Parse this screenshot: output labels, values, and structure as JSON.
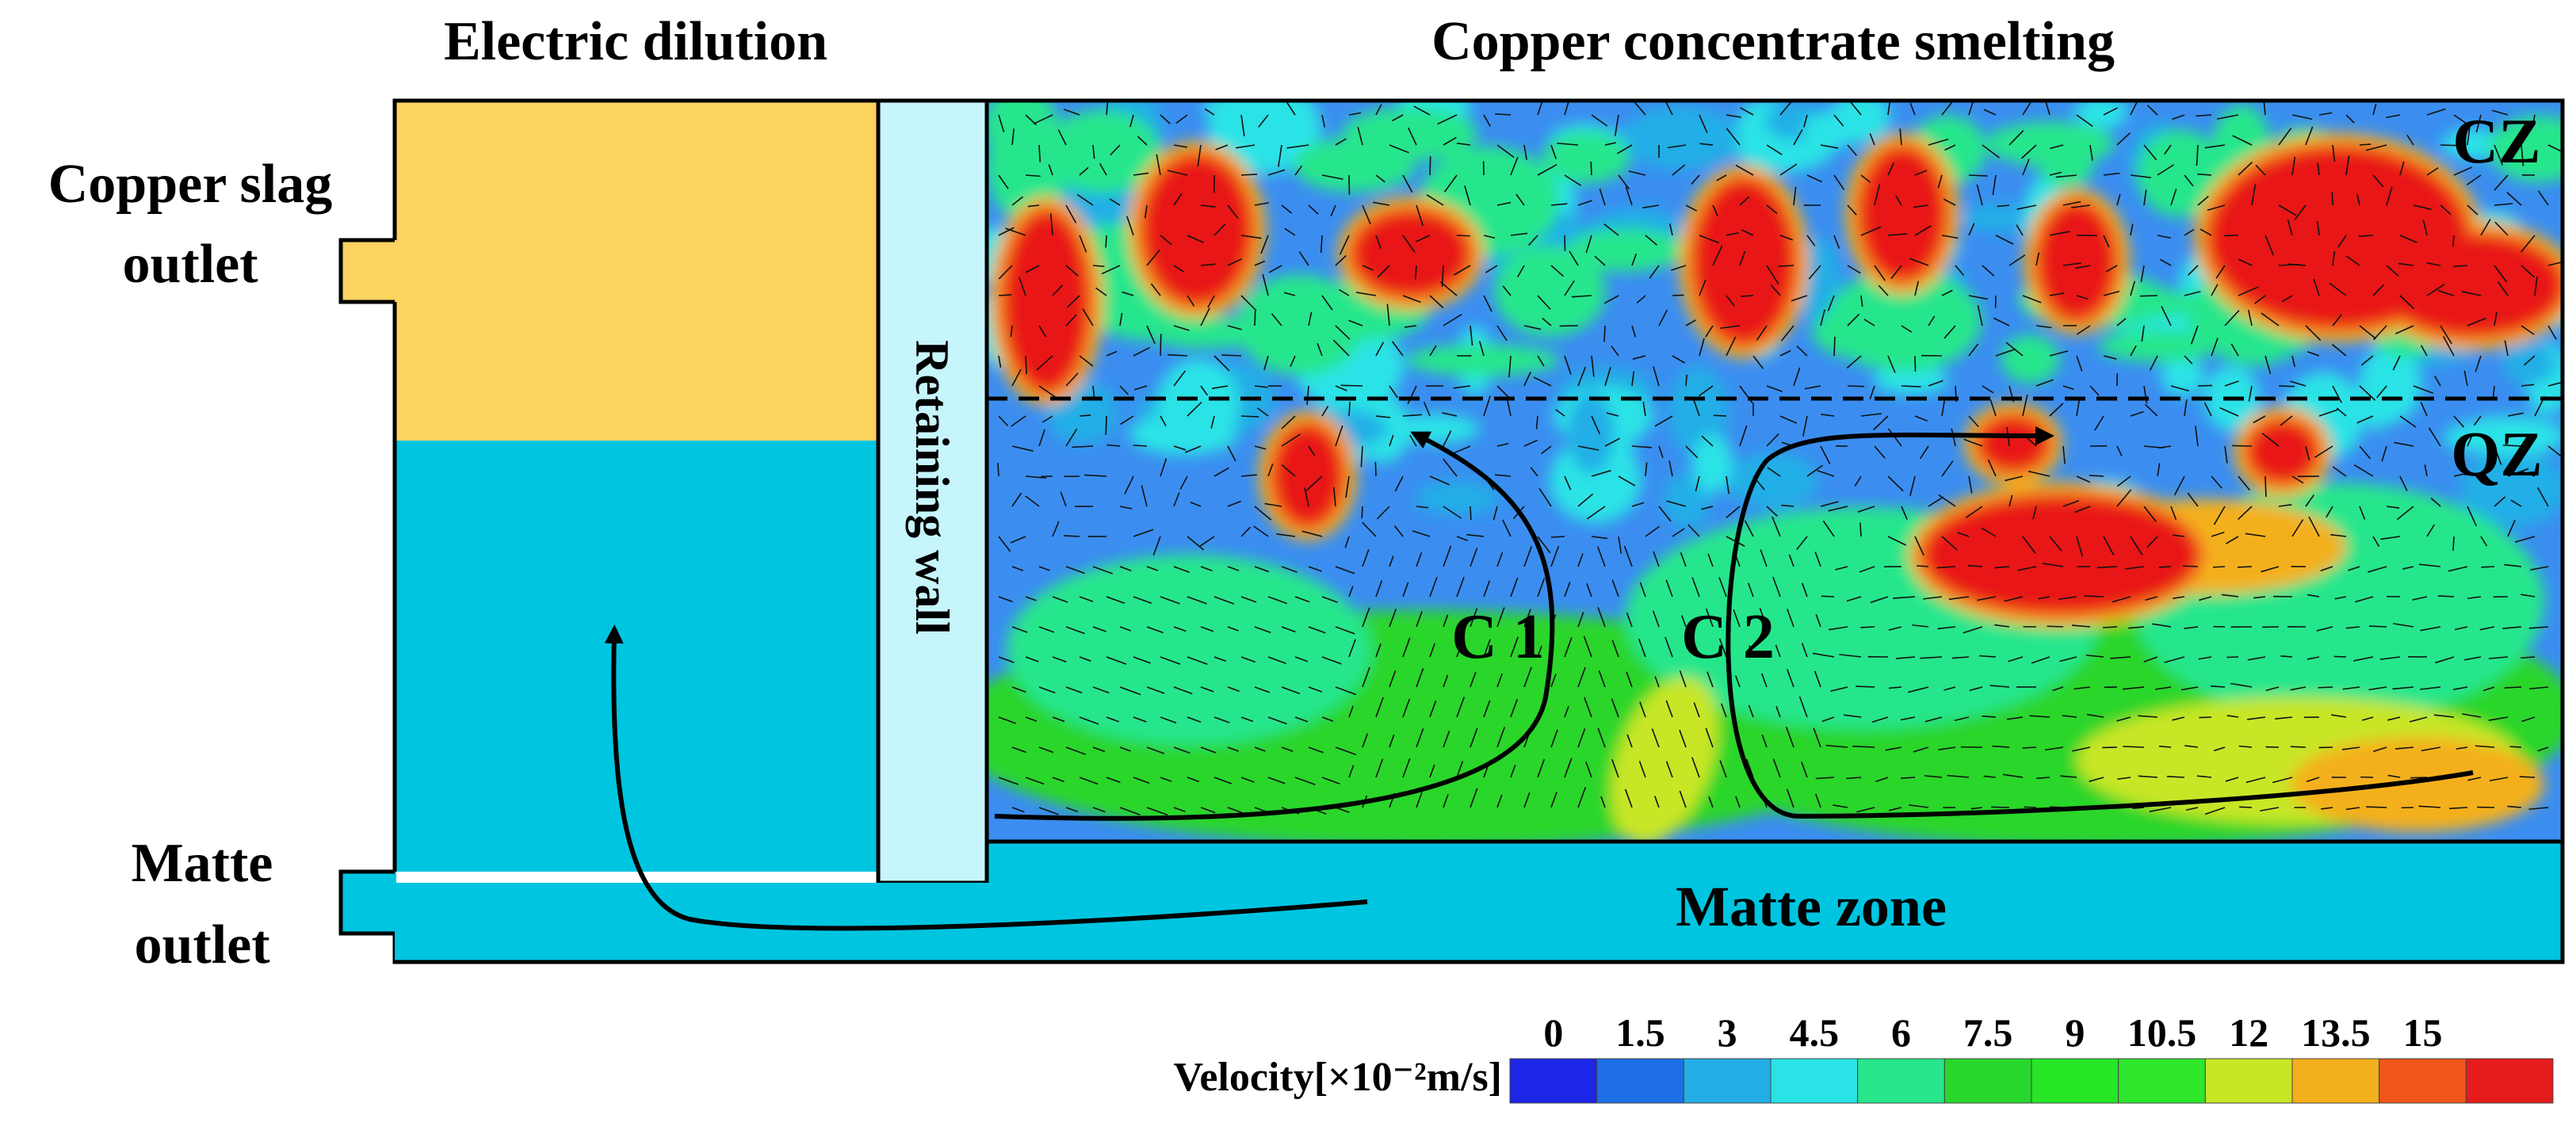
{
  "labels": {
    "electric_dilution": "Electric dilution",
    "copper_concentrate_smelting": "Copper concentrate smelting",
    "copper_slag_outlet_line1": "Copper slag",
    "copper_slag_outlet_line2": "outlet",
    "matte_outlet_line1": "Matte",
    "matte_outlet_line2": "outlet",
    "retaining_wall": "Retaining wall",
    "matte_zone": "Matte zone",
    "cz": "CZ",
    "qz": "QZ",
    "c1": "C 1",
    "c2": "C 2"
  },
  "colorbar": {
    "title": "Velocity[×10⁻²m/s]",
    "ticks": [
      "0",
      "1.5",
      "3",
      "4.5",
      "6",
      "7.5",
      "9",
      "10.5",
      "12",
      "13.5",
      "15"
    ],
    "colors": [
      "#1c26e6",
      "#1e6fe6",
      "#23aee6",
      "#29e3e6",
      "#27e68c",
      "#29d62b",
      "#26e626",
      "#2ee62b",
      "#c8e626",
      "#f4b01c",
      "#f0561a",
      "#e61c1c"
    ]
  },
  "colors": {
    "slag": "#fcd35f",
    "matte": "#00c5e0",
    "wall": "#c6f5fb",
    "field_base": "#27e66f",
    "hot": "#e81818"
  }
}
